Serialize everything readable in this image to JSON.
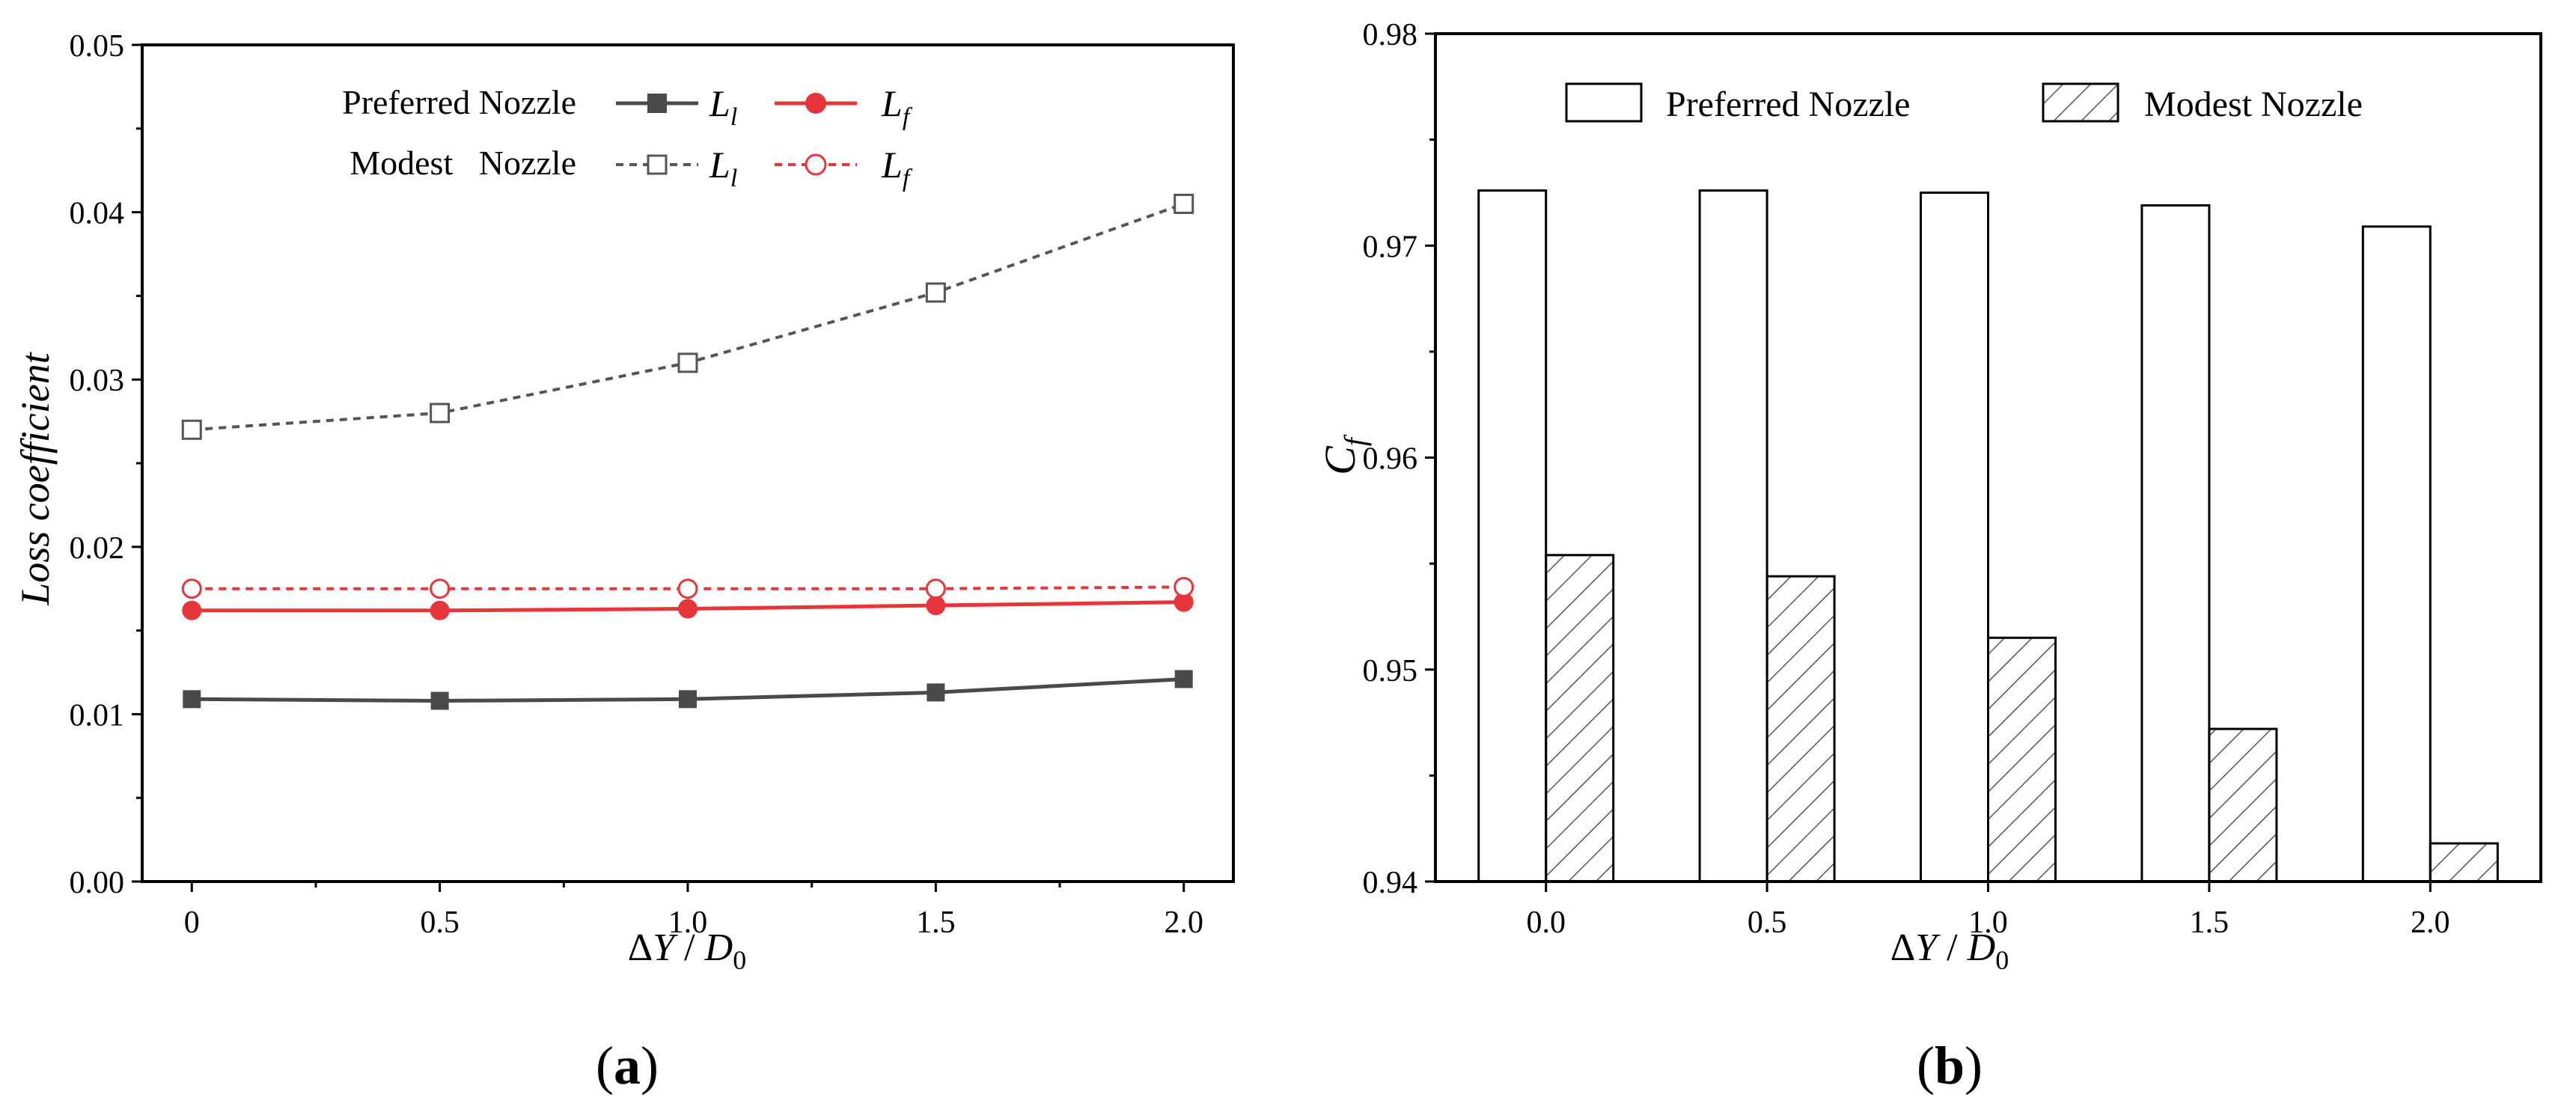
{
  "panels": {
    "a": {
      "label": "(a)",
      "letter": "a"
    },
    "b": {
      "label": "(b)",
      "letter": "b"
    }
  },
  "colors": {
    "axis": "#000000",
    "preferred_ll": "#4a4a4a",
    "preferred_lf": "#e8353a",
    "modest_ll": "#555555",
    "modest_lf": "#e8353a",
    "bar_edge": "#000000",
    "hatch": "#555555"
  },
  "chart_data": [
    {
      "id": "a",
      "type": "line",
      "xlabel": "ΔY / D0",
      "xlabel_parts": {
        "delta": "Δ",
        "y": "Y",
        "slash": " / ",
        "d": "D",
        "sub": "0"
      },
      "ylabel": "Loss coefficient",
      "xlim": [
        -0.1,
        2.1
      ],
      "ylim": [
        0.0,
        0.05
      ],
      "x_ticks": [
        0,
        0.5,
        1.0,
        1.5,
        2.0
      ],
      "x_tick_labels": [
        "0",
        "0.5",
        "1.0",
        "1.5",
        "2.0"
      ],
      "y_ticks": [
        0.0,
        0.01,
        0.02,
        0.03,
        0.04,
        0.05
      ],
      "y_tick_labels": [
        "0.00",
        "0.01",
        "0.02",
        "0.03",
        "0.04",
        "0.05"
      ],
      "x": [
        0,
        0.5,
        1.0,
        1.5,
        2.0
      ],
      "legend": {
        "position": "top-left",
        "rows": [
          {
            "group": "Preferred Nozzle",
            "entries": [
              {
                "symbol": "L",
                "sub": "l"
              },
              {
                "symbol": "L",
                "sub": "f"
              }
            ]
          },
          {
            "group": "Modest   Nozzle",
            "entries": [
              {
                "symbol": "L",
                "sub": "l"
              },
              {
                "symbol": "L",
                "sub": "f"
              }
            ]
          }
        ]
      },
      "series": [
        {
          "name": "Preferred Nozzle L_l",
          "values": [
            0.0109,
            0.0108,
            0.0109,
            0.0113,
            0.0121
          ],
          "style": "solid",
          "marker": "filled-square",
          "color_key": "preferred_ll"
        },
        {
          "name": "Preferred Nozzle L_f",
          "values": [
            0.0162,
            0.0162,
            0.0163,
            0.0165,
            0.0167
          ],
          "style": "solid",
          "marker": "filled-circle",
          "color_key": "preferred_lf"
        },
        {
          "name": "Modest Nozzle L_l",
          "values": [
            0.027,
            0.028,
            0.031,
            0.0352,
            0.0405
          ],
          "style": "dashed",
          "marker": "open-square",
          "color_key": "modest_ll"
        },
        {
          "name": "Modest Nozzle L_f",
          "values": [
            0.0175,
            0.0175,
            0.0175,
            0.0175,
            0.0176
          ],
          "style": "dashed",
          "marker": "open-circle",
          "color_key": "modest_lf"
        }
      ]
    },
    {
      "id": "b",
      "type": "bar",
      "xlabel": "ΔY / D0",
      "xlabel_parts": {
        "delta": "Δ",
        "y": "Y",
        "slash": " / ",
        "d": "D",
        "sub": "0"
      },
      "ylabel": "Cf",
      "ylabel_parts": {
        "main": "C",
        "sub": "f"
      },
      "ylim": [
        0.94,
        0.98
      ],
      "y_ticks": [
        0.94,
        0.95,
        0.96,
        0.97,
        0.98
      ],
      "y_tick_labels": [
        "0.94",
        "0.95",
        "0.96",
        "0.97",
        "0.98"
      ],
      "categories": [
        "0.0",
        "0.5",
        "1.0",
        "1.5",
        "2.0"
      ],
      "legend": {
        "position": "top",
        "entries": [
          {
            "name": "Preferred Nozzle",
            "fill": "open"
          },
          {
            "name": "Modest Nozzle",
            "fill": "hatched"
          }
        ]
      },
      "series": [
        {
          "name": "Preferred Nozzle",
          "fill": "open",
          "values": [
            0.9726,
            0.9726,
            0.9725,
            0.9719,
            0.9709
          ]
        },
        {
          "name": "Modest Nozzle",
          "fill": "hatched",
          "values": [
            0.9554,
            0.9544,
            0.9515,
            0.9472,
            0.9418
          ]
        }
      ]
    }
  ]
}
